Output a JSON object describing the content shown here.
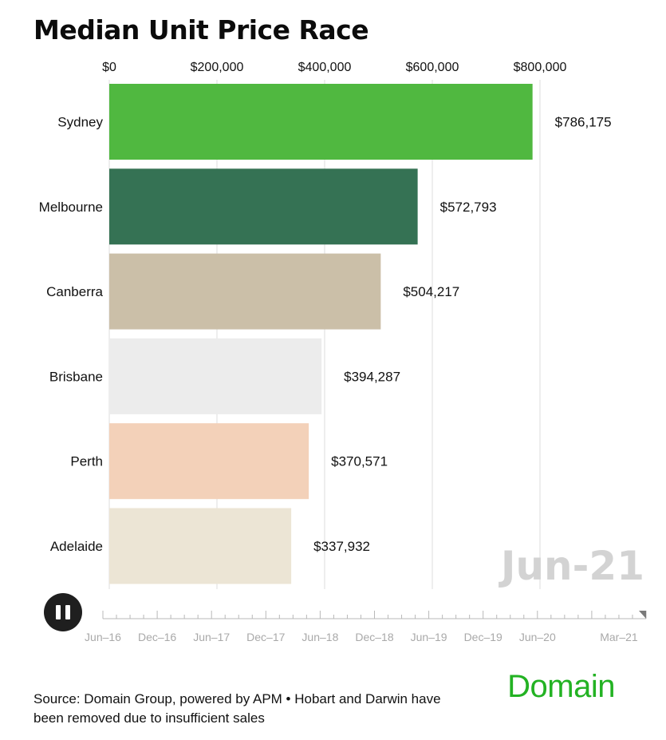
{
  "header": {
    "title": "Median Unit Price Race"
  },
  "chart_data": {
    "type": "bar",
    "orientation": "horizontal",
    "title": "Median Unit Price Race",
    "period": "Jun-21",
    "categories": [
      "Sydney",
      "Melbourne",
      "Canberra",
      "Brisbane",
      "Perth",
      "Adelaide"
    ],
    "values": [
      786175,
      572793,
      504217,
      394287,
      370571,
      337932
    ],
    "value_labels": [
      "$786,175",
      "$572,793",
      "$504,217",
      "$394,287",
      "$370,571",
      "$337,932"
    ],
    "colors": [
      "#50b840",
      "#357254",
      "#cbbfa8",
      "#ececec",
      "#f3d1b9",
      "#ece5d5"
    ],
    "xlim": [
      0,
      800000
    ],
    "x_ticks": [
      0,
      200000,
      400000,
      600000,
      800000
    ],
    "x_tick_labels": [
      "$0",
      "$200,000",
      "$400,000",
      "$600,000",
      "$800,000"
    ],
    "x_axis_position": "top",
    "grid": true
  },
  "timeline": {
    "labels": [
      "Jun–16",
      "Dec–16",
      "Jun–17",
      "Dec–17",
      "Jun–18",
      "Dec–18",
      "Jun–19",
      "Dec–19",
      "Jun–20",
      "Mar–21"
    ],
    "positions": [
      0,
      0.5,
      1,
      1.5,
      2,
      2.5,
      3,
      3.5,
      4,
      4.75
    ],
    "range": [
      0,
      5
    ],
    "current": 5
  },
  "controls": {
    "pause_icon": "pause-icon"
  },
  "footer": {
    "source": "Source: Domain Group, powered by APM • Hobart and Darwin have been removed due to insufficient sales",
    "logo": "Domain"
  }
}
